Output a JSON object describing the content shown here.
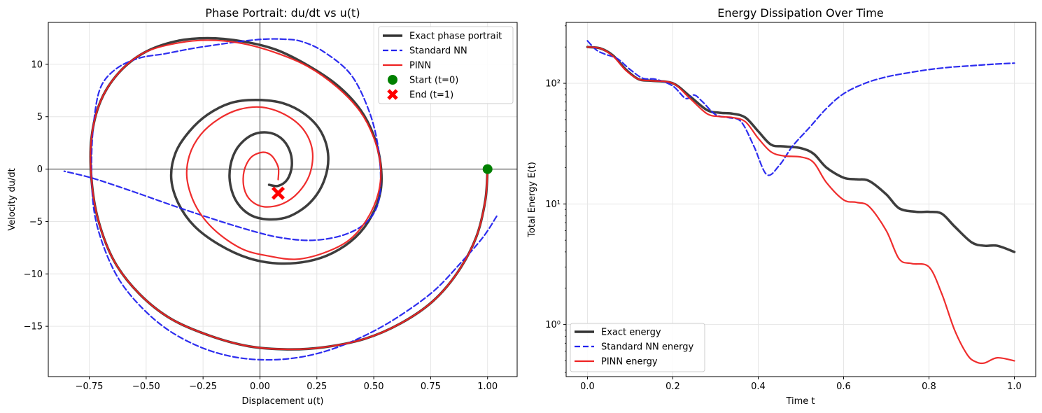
{
  "chart_data": [
    {
      "type": "line",
      "title": "Phase Portrait: du/dt vs u(t)",
      "xlabel": "Displacement u(t)",
      "ylabel": "Velocity du/dt",
      "xlim": [
        -0.93,
        1.13
      ],
      "ylim": [
        -19.8,
        14.0
      ],
      "xticks": [
        -0.75,
        -0.5,
        -0.25,
        0.0,
        0.25,
        0.5,
        0.75,
        1.0
      ],
      "xtick_labels": [
        "−0.75",
        "−0.50",
        "−0.25",
        "0.00",
        "0.25",
        "0.50",
        "0.75",
        "1.00"
      ],
      "yticks": [
        -15,
        -10,
        -5,
        0,
        5,
        10
      ],
      "ytick_labels": [
        "−15",
        "−10",
        "−5",
        "0",
        "5",
        "10"
      ],
      "grid": true,
      "legend_position": "top-right",
      "series": [
        {
          "name": "Exact phase portrait",
          "style": "solid",
          "color": "#333333",
          "x": [
            1.0,
            0.99,
            0.95,
            0.87,
            0.76,
            0.62,
            0.46,
            0.28,
            0.12,
            -0.05,
            -0.22,
            -0.39,
            -0.53,
            -0.64,
            -0.71,
            -0.74,
            -0.74,
            -0.7,
            -0.62,
            -0.51,
            -0.37,
            -0.23,
            -0.08,
            0.07,
            0.21,
            0.34,
            0.44,
            0.5,
            0.53,
            0.53,
            0.49,
            0.42,
            0.32,
            0.21,
            0.08,
            -0.05,
            -0.18,
            -0.29,
            -0.36,
            -0.39,
            -0.37,
            -0.31,
            -0.23,
            -0.13,
            -0.02,
            0.1,
            0.2,
            0.27,
            0.3,
            0.28,
            0.22,
            0.13,
            0.04,
            -0.04,
            -0.1,
            -0.13,
            -0.13,
            -0.1,
            -0.04,
            0.03,
            0.09,
            0.13,
            0.14,
            0.12,
            0.08,
            0.04
          ],
          "y": [
            0.0,
            -3.0,
            -6.5,
            -9.8,
            -12.6,
            -14.7,
            -16.2,
            -17.0,
            -17.2,
            -16.9,
            -15.9,
            -14.3,
            -11.9,
            -8.8,
            -4.9,
            -1.0,
            3.0,
            6.5,
            9.2,
            11.1,
            12.2,
            12.5,
            12.2,
            11.4,
            9.9,
            8.0,
            5.7,
            3.2,
            0.5,
            -2.1,
            -4.5,
            -6.5,
            -8.0,
            -8.8,
            -9.0,
            -8.5,
            -7.2,
            -5.4,
            -3.2,
            -0.8,
            1.6,
            3.6,
            5.2,
            6.3,
            6.6,
            6.3,
            5.2,
            3.5,
            1.2,
            -1.2,
            -3.2,
            -4.5,
            -4.8,
            -4.4,
            -3.2,
            -1.5,
            0.3,
            2.0,
            3.2,
            3.5,
            3.0,
            1.8,
            0.3,
            -1.0,
            -1.6,
            -1.5
          ]
        },
        {
          "name": "Standard NN",
          "style": "dashed",
          "color": "#2222ee",
          "x": [
            1.04,
            0.98,
            0.88,
            0.76,
            0.6,
            0.45,
            0.3,
            0.16,
            0.02,
            -0.12,
            -0.26,
            -0.4,
            -0.52,
            -0.62,
            -0.69,
            -0.73,
            -0.74,
            -0.73,
            -0.7,
            -0.63,
            -0.53,
            -0.42,
            -0.3,
            -0.18,
            -0.08,
            0.02,
            0.1,
            0.18,
            0.28,
            0.4,
            0.48,
            0.52,
            0.53,
            0.51,
            0.45,
            0.35,
            0.22,
            0.08,
            -0.05,
            -0.2,
            -0.38,
            -0.55,
            -0.73,
            -0.86
          ],
          "y": [
            -4.5,
            -6.5,
            -9.0,
            -11.7,
            -14.2,
            -16.0,
            -17.3,
            -18.0,
            -18.2,
            -17.9,
            -17.0,
            -15.4,
            -13.2,
            -10.5,
            -7.2,
            -3.8,
            0.5,
            4.5,
            7.8,
            9.6,
            10.6,
            11.0,
            11.5,
            11.9,
            12.2,
            12.4,
            12.4,
            12.2,
            11.2,
            9.0,
            5.5,
            2.0,
            -1.5,
            -3.8,
            -5.4,
            -6.4,
            -6.8,
            -6.5,
            -5.8,
            -4.8,
            -3.5,
            -2.2,
            -0.9,
            -0.2
          ]
        },
        {
          "name": "PINN",
          "style": "solid",
          "color": "#ee2222",
          "x": [
            1.0,
            0.99,
            0.95,
            0.87,
            0.76,
            0.62,
            0.46,
            0.28,
            0.12,
            -0.05,
            -0.22,
            -0.39,
            -0.53,
            -0.64,
            -0.71,
            -0.74,
            -0.74,
            -0.7,
            -0.62,
            -0.51,
            -0.37,
            -0.23,
            -0.08,
            0.07,
            0.21,
            0.34,
            0.44,
            0.5,
            0.53,
            0.52,
            0.47,
            0.39,
            0.28,
            0.16,
            0.04,
            -0.08,
            -0.2,
            -0.28,
            -0.32,
            -0.31,
            -0.26,
            -0.18,
            -0.09,
            0.01,
            0.11,
            0.19,
            0.23,
            0.22,
            0.17,
            0.1,
            0.02,
            -0.04,
            -0.07,
            -0.07,
            -0.04,
            0.01,
            0.05,
            0.08,
            0.08
          ],
          "y": [
            0.0,
            -3.0,
            -6.5,
            -9.8,
            -12.6,
            -14.7,
            -16.2,
            -17.0,
            -17.2,
            -16.9,
            -15.9,
            -14.3,
            -11.9,
            -8.8,
            -4.9,
            -1.0,
            3.0,
            6.5,
            9.2,
            11.1,
            12.0,
            12.3,
            12.0,
            11.1,
            9.8,
            7.8,
            5.5,
            3.0,
            0.3,
            -2.3,
            -4.8,
            -6.8,
            -8.0,
            -8.6,
            -8.3,
            -7.6,
            -5.8,
            -3.6,
            -1.0,
            1.3,
            3.3,
            4.8,
            5.7,
            5.9,
            5.2,
            3.8,
            1.8,
            -0.4,
            -2.2,
            -3.3,
            -3.6,
            -3.0,
            -1.8,
            -0.2,
            1.1,
            1.6,
            1.3,
            0.2,
            -1.0
          ]
        },
        {
          "name": "Start (t=0)",
          "type": "scatter",
          "marker": "circle",
          "color": "#008000",
          "x": [
            1.0
          ],
          "y": [
            0.0
          ]
        },
        {
          "name": "End (t=1)",
          "type": "scatter",
          "marker": "x",
          "color": "#ff0000",
          "x": [
            0.08
          ],
          "y": [
            -2.3
          ]
        }
      ]
    },
    {
      "type": "line",
      "title": "Energy Dissipation Over Time",
      "xlabel": "Time t",
      "ylabel": "Total Energy E(t)",
      "xlim": [
        -0.05,
        1.05
      ],
      "ylim": [
        0.37,
        320
      ],
      "yscale": "log",
      "xticks": [
        0.0,
        0.2,
        0.4,
        0.6,
        0.8,
        1.0
      ],
      "xtick_labels": [
        "0.0",
        "0.2",
        "0.4",
        "0.6",
        "0.8",
        "1.0"
      ],
      "yticks": [
        1,
        10,
        100
      ],
      "ytick_labels": [
        "10⁰",
        "10¹",
        "10²"
      ],
      "grid": true,
      "legend_position": "bottom-left",
      "series": [
        {
          "name": "Exact energy",
          "style": "solid",
          "color": "#333333",
          "x": [
            0.0,
            0.03,
            0.06,
            0.09,
            0.12,
            0.15,
            0.2,
            0.24,
            0.28,
            0.31,
            0.34,
            0.37,
            0.4,
            0.43,
            0.46,
            0.5,
            0.53,
            0.56,
            0.6,
            0.63,
            0.66,
            0.7,
            0.73,
            0.77,
            0.8,
            0.83,
            0.86,
            0.9,
            0.93,
            0.96,
            1.0
          ],
          "y": [
            200,
            195,
            170,
            130,
            108,
            105,
            100,
            78,
            60,
            57,
            56,
            52,
            40,
            31,
            30,
            29,
            26,
            20,
            16.5,
            16,
            15.5,
            12,
            9.2,
            8.6,
            8.6,
            8.3,
            6.5,
            4.8,
            4.5,
            4.5,
            4.0
          ]
        },
        {
          "name": "Standard NN energy",
          "style": "dashed",
          "color": "#2222ee",
          "x": [
            0.0,
            0.02,
            0.04,
            0.07,
            0.1,
            0.13,
            0.16,
            0.2,
            0.23,
            0.25,
            0.27,
            0.3,
            0.33,
            0.36,
            0.39,
            0.42,
            0.45,
            0.48,
            0.52,
            0.56,
            0.6,
            0.65,
            0.7,
            0.75,
            0.8,
            0.85,
            0.9,
            0.95,
            1.0
          ],
          "y": [
            225,
            190,
            175,
            160,
            130,
            110,
            108,
            95,
            75,
            80,
            70,
            55,
            52,
            48,
            30,
            17.5,
            21,
            30,
            43,
            62,
            82,
            100,
            113,
            122,
            130,
            136,
            140,
            144,
            147
          ]
        },
        {
          "name": "PINN energy",
          "style": "solid",
          "color": "#ee2222",
          "x": [
            0.0,
            0.03,
            0.06,
            0.09,
            0.12,
            0.15,
            0.2,
            0.24,
            0.28,
            0.31,
            0.34,
            0.37,
            0.4,
            0.43,
            0.46,
            0.5,
            0.53,
            0.56,
            0.6,
            0.63,
            0.66,
            0.7,
            0.73,
            0.76,
            0.8,
            0.83,
            0.86,
            0.89,
            0.91,
            0.93,
            0.96,
            1.0
          ],
          "y": [
            200,
            195,
            168,
            128,
            108,
            105,
            100,
            75,
            56,
            53,
            52,
            48,
            35,
            27,
            25,
            24.5,
            22,
            15,
            10.8,
            10.3,
            9.5,
            6,
            3.5,
            3.2,
            3.0,
            1.8,
            0.9,
            0.56,
            0.49,
            0.48,
            0.53,
            0.5
          ]
        }
      ]
    }
  ]
}
